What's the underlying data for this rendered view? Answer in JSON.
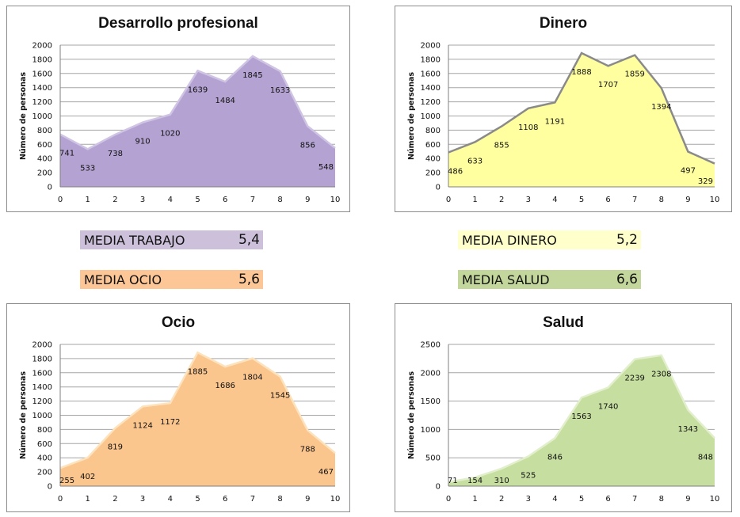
{
  "chart_data": [
    {
      "type": "area",
      "title": "Desarrollo profesional",
      "ylabel": "Número de personas",
      "xlabel": "",
      "ylim": [
        0,
        2000
      ],
      "ytick_step": 200,
      "x": [
        0,
        1,
        2,
        3,
        4,
        5,
        6,
        7,
        8,
        9,
        10
      ],
      "values": [
        741,
        533,
        738,
        910,
        1020,
        1639,
        1484,
        1845,
        1633,
        856,
        548
      ],
      "fill": "#b4a3d2",
      "stroke": "#cfc4e4"
    },
    {
      "type": "area",
      "title": "Dinero",
      "ylabel": "Número de personas",
      "xlabel": "",
      "ylim": [
        0,
        2000
      ],
      "ytick_step": 200,
      "x": [
        0,
        1,
        2,
        3,
        4,
        5,
        6,
        7,
        8,
        9,
        10
      ],
      "values": [
        486,
        633,
        855,
        1108,
        1191,
        1888,
        1707,
        1859,
        1394,
        497,
        329
      ],
      "fill": "#ffff9f",
      "stroke": "#8a8a8a"
    },
    {
      "type": "area",
      "title": "Ocio",
      "ylabel": "Número de personas",
      "xlabel": "",
      "ylim": [
        0,
        2000
      ],
      "ytick_step": 200,
      "x": [
        0,
        1,
        2,
        3,
        4,
        5,
        6,
        7,
        8,
        9,
        10
      ],
      "values": [
        255,
        402,
        819,
        1124,
        1172,
        1885,
        1686,
        1804,
        1545,
        788,
        467
      ],
      "fill": "#fbc58e",
      "stroke": "#fde3bd"
    },
    {
      "type": "area",
      "title": "Salud",
      "ylabel": "Número de personas",
      "xlabel": "",
      "ylim": [
        0,
        2500
      ],
      "ytick_step": 500,
      "x": [
        0,
        1,
        2,
        3,
        4,
        5,
        6,
        7,
        8,
        9,
        10
      ],
      "values": [
        71,
        154,
        310,
        525,
        846,
        1563,
        1740,
        2239,
        2308,
        1343,
        848
      ],
      "fill": "#c6dea0",
      "stroke": "#e2efcc"
    }
  ],
  "medias": [
    {
      "label": "MEDIA TRABAJO",
      "value": "5,4",
      "color": "#ccc0da"
    },
    {
      "label": "MEDIA OCIO",
      "value": "5,6",
      "color": "#fcc696"
    },
    {
      "label": "MEDIA DINERO",
      "value": "5,2",
      "color": "#ffffcc"
    },
    {
      "label": "MEDIA SALUD",
      "value": "6,6",
      "color": "#c3d69b"
    }
  ]
}
